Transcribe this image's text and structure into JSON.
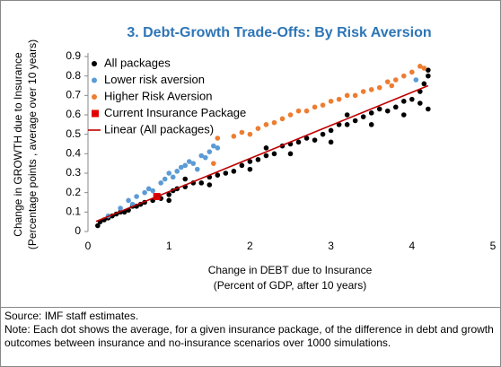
{
  "chart_data": {
    "type": "scatter",
    "title": "3. Debt-Growth Trade-Offs: By Risk Aversion",
    "x_label": [
      "Change in DEBT due to Insurance",
      "(Percent of GDP, after 10 years)"
    ],
    "y_label": [
      "Change in GROWTH due to Insurance",
      "(Percentage points , average over 10 years)"
    ],
    "xlim": [
      0,
      5
    ],
    "xticks": [
      0,
      1,
      2,
      3,
      4,
      5
    ],
    "ylim": [
      0,
      0.9
    ],
    "yticks": [
      0,
      0.1,
      0.2,
      0.3,
      0.4,
      0.5,
      0.6,
      0.7,
      0.8,
      0.9
    ],
    "legend": "upper left",
    "series": [
      {
        "name": "All packages",
        "color": "#000000",
        "marker": "circle",
        "x": [
          0.12,
          0.15,
          0.2,
          0.25,
          0.3,
          0.35,
          0.4,
          0.45,
          0.5,
          0.55,
          0.6,
          0.65,
          0.7,
          0.8,
          0.85,
          0.9,
          1.0,
          1.05,
          1.1,
          1.2,
          1.3,
          1.4,
          1.5,
          1.6,
          1.7,
          1.8,
          1.9,
          2.0,
          2.1,
          2.2,
          2.3,
          2.4,
          2.5,
          2.6,
          2.7,
          2.8,
          2.9,
          3.0,
          3.1,
          3.2,
          3.3,
          3.4,
          3.5,
          3.6,
          3.7,
          3.8,
          3.9,
          4.0,
          4.1,
          4.15,
          4.2,
          4.2,
          4.1,
          3.9,
          3.5,
          3.0,
          2.5,
          2.0,
          1.5,
          1.0,
          4.2,
          1.2,
          2.2,
          3.2
        ],
        "values": [
          0.03,
          0.05,
          0.06,
          0.07,
          0.08,
          0.09,
          0.1,
          0.1,
          0.11,
          0.13,
          0.13,
          0.14,
          0.15,
          0.16,
          0.18,
          0.17,
          0.19,
          0.21,
          0.22,
          0.23,
          0.25,
          0.25,
          0.28,
          0.29,
          0.3,
          0.31,
          0.34,
          0.36,
          0.37,
          0.39,
          0.4,
          0.44,
          0.45,
          0.46,
          0.48,
          0.47,
          0.5,
          0.52,
          0.55,
          0.55,
          0.57,
          0.59,
          0.61,
          0.63,
          0.62,
          0.64,
          0.67,
          0.68,
          0.72,
          0.76,
          0.8,
          0.83,
          0.66,
          0.6,
          0.55,
          0.46,
          0.4,
          0.32,
          0.24,
          0.16,
          0.63,
          0.27,
          0.43,
          0.6
        ]
      },
      {
        "name": "Lower risk aversion",
        "color": "#5b9bd5",
        "marker": "circle",
        "x": [
          0.25,
          0.4,
          0.5,
          0.55,
          0.6,
          0.7,
          0.75,
          0.8,
          0.9,
          0.95,
          1.0,
          1.05,
          1.1,
          1.15,
          1.2,
          1.25,
          1.3,
          1.4,
          1.45,
          1.5,
          1.55,
          1.6,
          1.35,
          4.05
        ],
        "values": [
          0.08,
          0.12,
          0.16,
          0.14,
          0.18,
          0.2,
          0.22,
          0.21,
          0.25,
          0.27,
          0.3,
          0.28,
          0.31,
          0.33,
          0.34,
          0.36,
          0.35,
          0.39,
          0.38,
          0.41,
          0.44,
          0.43,
          0.32,
          0.78
        ]
      },
      {
        "name": "Higher Risk Aversion",
        "color": "#ed7d31",
        "marker": "circle",
        "x": [
          1.55,
          1.6,
          1.8,
          1.9,
          2.0,
          2.1,
          2.2,
          2.3,
          2.4,
          2.5,
          2.6,
          2.7,
          2.8,
          2.9,
          3.0,
          3.1,
          3.2,
          3.3,
          3.4,
          3.5,
          3.6,
          3.7,
          3.8,
          3.9,
          4.0,
          4.1,
          4.15,
          3.75
        ],
        "values": [
          0.35,
          0.48,
          0.49,
          0.51,
          0.5,
          0.53,
          0.55,
          0.56,
          0.58,
          0.6,
          0.62,
          0.62,
          0.64,
          0.65,
          0.67,
          0.68,
          0.7,
          0.7,
          0.72,
          0.73,
          0.74,
          0.77,
          0.78,
          0.8,
          0.82,
          0.85,
          0.84,
          0.75
        ]
      },
      {
        "name": "Current Insurance Package",
        "color": "#e00000",
        "marker": "square",
        "x": [
          0.85
        ],
        "values": [
          0.18
        ]
      },
      {
        "name": "Linear (All packages)",
        "color": "#c00000",
        "marker": "line",
        "x": [
          0.1,
          4.2
        ],
        "values": [
          0.052,
          0.75
        ]
      }
    ],
    "source": "Source: IMF staff estimates.",
    "note": "Note: Each dot shows the average, for a given insurance package, of the difference in debt and growth outcomes between insurance and no-insurance scenarios over 1000 simulations."
  }
}
